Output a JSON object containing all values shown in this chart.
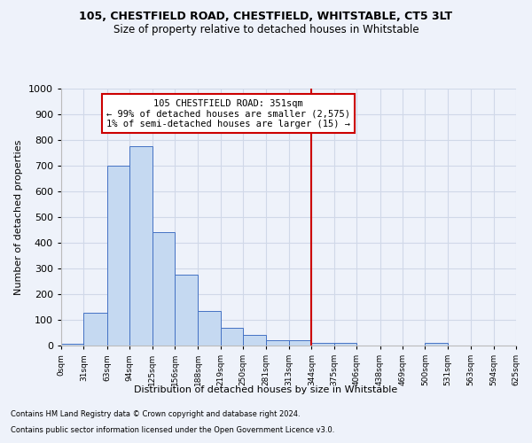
{
  "title1": "105, CHESTFIELD ROAD, CHESTFIELD, WHITSTABLE, CT5 3LT",
  "title2": "Size of property relative to detached houses in Whitstable",
  "xlabel": "Distribution of detached houses by size in Whitstable",
  "ylabel": "Number of detached properties",
  "footer1": "Contains HM Land Registry data © Crown copyright and database right 2024.",
  "footer2": "Contains public sector information licensed under the Open Government Licence v3.0.",
  "bin_labels": [
    "0sqm",
    "31sqm",
    "63sqm",
    "94sqm",
    "125sqm",
    "156sqm",
    "188sqm",
    "219sqm",
    "250sqm",
    "281sqm",
    "313sqm",
    "344sqm",
    "375sqm",
    "406sqm",
    "438sqm",
    "469sqm",
    "500sqm",
    "531sqm",
    "563sqm",
    "594sqm",
    "625sqm"
  ],
  "bin_edges": [
    0,
    31,
    63,
    94,
    125,
    156,
    188,
    219,
    250,
    281,
    313,
    344,
    375,
    406,
    438,
    469,
    500,
    531,
    563,
    594,
    625
  ],
  "bar_values": [
    7,
    127,
    700,
    775,
    440,
    275,
    133,
    70,
    40,
    22,
    22,
    12,
    12,
    0,
    0,
    0,
    10,
    0,
    0,
    0
  ],
  "bar_color": "#c5d9f1",
  "bar_edge_color": "#4472c4",
  "property_line_x": 344,
  "property_size": 351,
  "annotation_title": "105 CHESTFIELD ROAD: 351sqm",
  "annotation_line1": "← 99% of detached houses are smaller (2,575)",
  "annotation_line2": "1% of semi-detached houses are larger (15) →",
  "annotation_box_color": "#ffffff",
  "annotation_box_edge_color": "#cc0000",
  "vline_color": "#cc0000",
  "grid_color": "#d0d8e8",
  "background_color": "#eef2fa",
  "ylim": [
    0,
    1000
  ],
  "yticks": [
    0,
    100,
    200,
    300,
    400,
    500,
    600,
    700,
    800,
    900,
    1000
  ]
}
